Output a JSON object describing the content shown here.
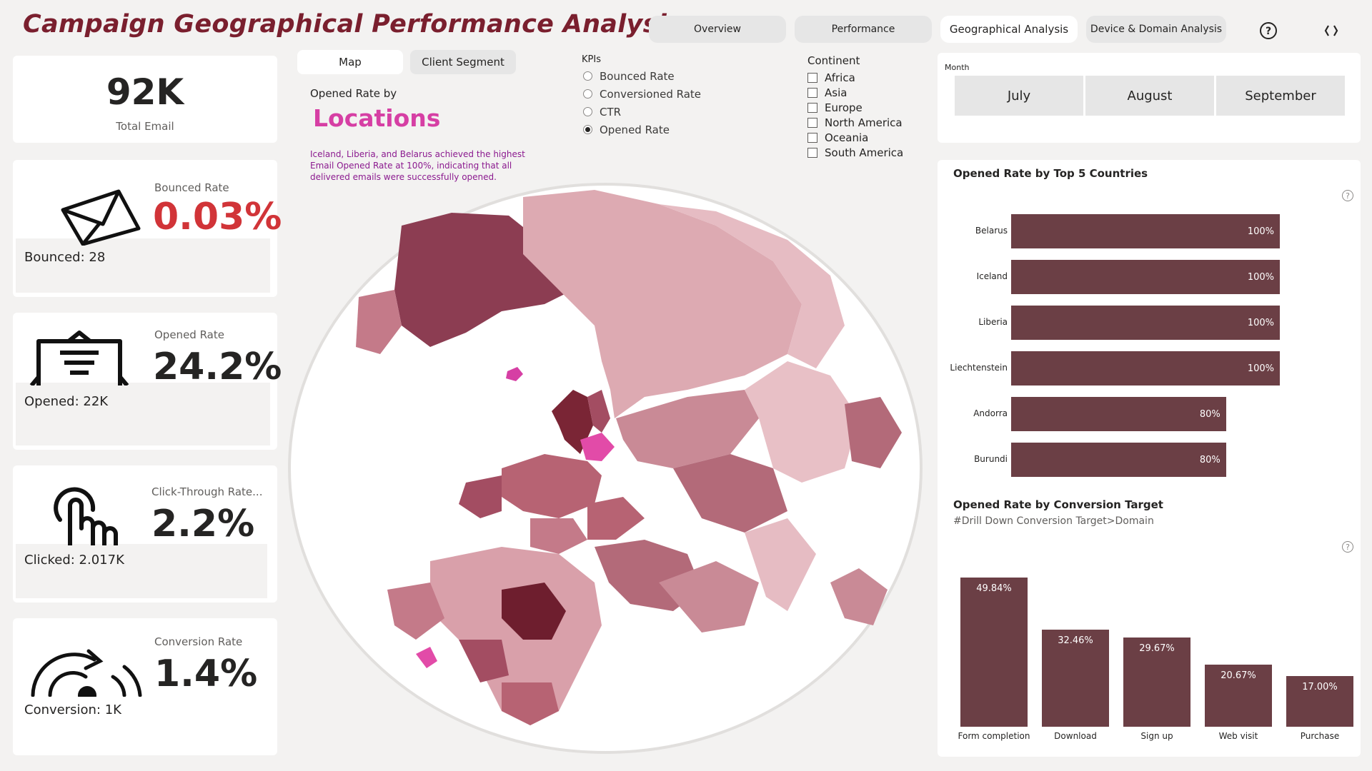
{
  "header": {
    "title": "Campaign Geographical Performance Analysis",
    "nav": [
      "Overview",
      "Performance",
      "Geographical Analysis",
      "Device & Domain Analysis"
    ],
    "active_nav": "Geographical Analysis"
  },
  "kpis": {
    "total_email": {
      "value": "92K",
      "label": "Total Email"
    },
    "bounced": {
      "label": "Bounced Rate",
      "value": "0.03%",
      "sub": "Bounced: 28"
    },
    "opened": {
      "label": "Opened Rate",
      "value": "24.2%",
      "sub": "Opened: 22K"
    },
    "ctr": {
      "label": "Click-Through Rate...",
      "value": "2.2%",
      "sub": "Clicked: 2.017K"
    },
    "conversion": {
      "label": "Conversion Rate",
      "value": "1.4%",
      "sub": "Conversion: 1K"
    }
  },
  "map_panel": {
    "tabs": [
      "Map",
      "Client Segment"
    ],
    "active_tab": "Map",
    "subtitle": "Opened Rate by",
    "headline": "Locations",
    "insight": "Iceland, Liberia, and Belarus achieved the highest Email Opened Rate at 100%, indicating that all delivered emails were successfully opened."
  },
  "kpi_selector": {
    "title": "KPIs",
    "options": [
      "Bounced Rate",
      "Conversioned Rate",
      "CTR",
      "Opened Rate"
    ],
    "selected": "Opened Rate"
  },
  "continent_filter": {
    "title": "Continent",
    "options": [
      "Africa",
      "Asia",
      "Europe",
      "North America",
      "Oceania",
      "South America"
    ]
  },
  "month_slicer": {
    "title": "Month",
    "options": [
      "July",
      "August",
      "September"
    ]
  },
  "top_countries": {
    "title": "Opened Rate by Top 5 Countries"
  },
  "conversion_target": {
    "title": "Opened Rate by Conversion Target",
    "subtitle": "#Drill Down Conversion Target>Domain"
  },
  "colors": {
    "brand_title": "#7a1f2e",
    "bar": "#6b3f45",
    "bounced_value": "#d13438",
    "locations_headline": "#d63fa4",
    "insight_text": "#8b1a8f"
  },
  "chart_data": [
    {
      "type": "bar",
      "orientation": "horizontal",
      "categories": [
        "Belarus",
        "Iceland",
        "Liberia",
        "Liechtenstein",
        "Andorra",
        "Burundi"
      ],
      "values": [
        100,
        100,
        100,
        100,
        80,
        80
      ],
      "labels": [
        "100%",
        "100%",
        "100%",
        "100%",
        "80%",
        "80%"
      ],
      "title": "Opened Rate by Top 5 Countries",
      "xlim": [
        0,
        100
      ]
    },
    {
      "type": "bar",
      "categories": [
        "Form completion",
        "Download",
        "Sign up",
        "Web visit",
        "Purchase"
      ],
      "values": [
        49.84,
        32.46,
        29.67,
        20.67,
        17.0
      ],
      "labels": [
        "49.84%",
        "32.46%",
        "29.67%",
        "20.67%",
        "17.00%"
      ],
      "title": "Opened Rate by Conversion Target",
      "ylim": [
        0,
        50
      ]
    }
  ]
}
